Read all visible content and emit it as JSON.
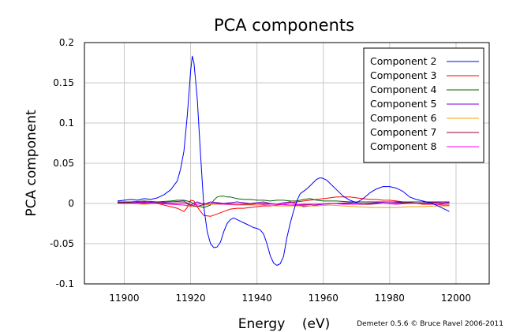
{
  "chart_data": {
    "type": "line",
    "title": "PCA components",
    "xlabel": "Energy    (eV)",
    "ylabel": "PCA component",
    "xlim": [
      11888,
      12010
    ],
    "ylim": [
      -0.1,
      0.2
    ],
    "xticks": [
      "11900",
      "11920",
      "11940",
      "11960",
      "11980",
      "12000"
    ],
    "xtick_values": [
      11900,
      11920,
      11940,
      11960,
      11980,
      12000
    ],
    "yticks": [
      "-0.1",
      "-0.05",
      "0",
      "0.05",
      "0.1",
      "0.15",
      "0.2"
    ],
    "ytick_values": [
      -0.1,
      -0.05,
      0,
      0.05,
      0.1,
      0.15,
      0.2
    ],
    "grid": true,
    "legend_position": "top-right",
    "series": [
      {
        "name": "Component 2",
        "color": "#0000ff",
        "x": [
          11898,
          11900,
          11902,
          11904,
          11906,
          11908,
          11910,
          11912,
          11914,
          11916,
          11917,
          11918,
          11919,
          11920,
          11920.5,
          11921,
          11922,
          11923,
          11924,
          11925,
          11926,
          11927,
          11928,
          11929,
          11930,
          11931,
          11932,
          11933,
          11934,
          11935,
          11936,
          11937,
          11938,
          11939,
          11940,
          11941,
          11942,
          11943,
          11944,
          11945,
          11946,
          11947,
          11948,
          11949,
          11950,
          11951,
          11952,
          11953,
          11954,
          11955,
          11956,
          11957,
          11958,
          11959,
          11960,
          11961,
          11962,
          11964,
          11966,
          11968,
          11970,
          11972,
          11974,
          11976,
          11978,
          11980,
          11982,
          11984,
          11986,
          11988,
          11990,
          11992,
          11994,
          11996,
          11998
        ],
        "y": [
          0.003,
          0.004,
          0.005,
          0.004,
          0.006,
          0.005,
          0.007,
          0.011,
          0.017,
          0.028,
          0.043,
          0.065,
          0.11,
          0.165,
          0.183,
          0.175,
          0.13,
          0.06,
          -0.005,
          -0.035,
          -0.05,
          -0.055,
          -0.054,
          -0.048,
          -0.035,
          -0.025,
          -0.02,
          -0.018,
          -0.02,
          -0.022,
          -0.024,
          -0.026,
          -0.028,
          -0.03,
          -0.031,
          -0.033,
          -0.038,
          -0.05,
          -0.065,
          -0.074,
          -0.077,
          -0.075,
          -0.066,
          -0.043,
          -0.025,
          -0.01,
          0.003,
          0.012,
          0.015,
          0.018,
          0.022,
          0.026,
          0.03,
          0.032,
          0.031,
          0.029,
          0.025,
          0.017,
          0.009,
          0.004,
          0.001,
          0.006,
          0.013,
          0.018,
          0.021,
          0.021,
          0.019,
          0.015,
          0.008,
          0.005,
          0.003,
          0.001,
          -0.002,
          -0.006,
          -0.01
        ]
      },
      {
        "name": "Component 3",
        "color": "#ff0000",
        "x": [
          11898,
          11902,
          11906,
          11910,
          11914,
          11916,
          11918,
          11919,
          11920,
          11921,
          11922,
          11923,
          11924,
          11926,
          11928,
          11930,
          11932,
          11934,
          11936,
          11938,
          11940,
          11942,
          11944,
          11946,
          11948,
          11950,
          11952,
          11954,
          11956,
          11958,
          11960,
          11962,
          11964,
          11966,
          11968,
          11970,
          11972,
          11974,
          11976,
          11978,
          11980,
          11982,
          11984,
          11986,
          11988,
          11990,
          11992,
          11994,
          11996,
          11998
        ],
        "y": [
          0.0,
          0.001,
          0.001,
          0.0,
          -0.004,
          -0.006,
          -0.01,
          -0.005,
          0.004,
          0.003,
          -0.004,
          -0.01,
          -0.015,
          -0.016,
          -0.013,
          -0.01,
          -0.007,
          -0.006,
          -0.006,
          -0.005,
          -0.004,
          -0.003,
          -0.003,
          -0.002,
          -0.001,
          0.001,
          0.002,
          0.003,
          0.004,
          0.005,
          0.006,
          0.007,
          0.008,
          0.008,
          0.008,
          0.007,
          0.006,
          0.005,
          0.005,
          0.004,
          0.004,
          0.003,
          0.002,
          0.001,
          0.0,
          -0.001,
          -0.001,
          -0.001,
          -0.002,
          -0.002
        ]
      },
      {
        "name": "Component 4",
        "color": "#006400",
        "x": [
          11898,
          11902,
          11906,
          11910,
          11914,
          11916,
          11918,
          11920,
          11922,
          11924,
          11926,
          11927,
          11928,
          11929,
          11930,
          11931,
          11932,
          11934,
          11936,
          11938,
          11940,
          11942,
          11944,
          11946,
          11948,
          11950,
          11952,
          11954,
          11956,
          11958,
          11960,
          11964,
          11968,
          11972,
          11976,
          11980,
          11984,
          11988,
          11992,
          11996,
          11998
        ],
        "y": [
          0.002,
          0.002,
          0.003,
          0.002,
          0.003,
          0.004,
          0.004,
          0.002,
          -0.003,
          -0.005,
          -0.002,
          0.004,
          0.008,
          0.009,
          0.009,
          0.008,
          0.008,
          0.006,
          0.005,
          0.005,
          0.004,
          0.004,
          0.003,
          0.004,
          0.004,
          0.003,
          0.003,
          0.005,
          0.006,
          0.004,
          0.003,
          0.003,
          0.002,
          0.002,
          0.002,
          0.002,
          0.002,
          0.002,
          0.002,
          0.002,
          0.002
        ]
      },
      {
        "name": "Component 5",
        "color": "#7b00d4",
        "x": [
          11898,
          11902,
          11906,
          11910,
          11914,
          11918,
          11920,
          11922,
          11924,
          11926,
          11928,
          11930,
          11932,
          11934,
          11936,
          11938,
          11940,
          11942,
          11944,
          11946,
          11948,
          11950,
          11952,
          11954,
          11956,
          11958,
          11960,
          11964,
          11968,
          11972,
          11976,
          11980,
          11984,
          11988,
          11992,
          11996,
          11998
        ],
        "y": [
          0.001,
          0.001,
          0.002,
          0.001,
          0.002,
          0.003,
          -0.002,
          0.002,
          -0.001,
          0.002,
          0.001,
          0.0,
          0.001,
          0.002,
          0.001,
          0.0,
          0.001,
          0.002,
          0.0,
          -0.001,
          0.001,
          0.002,
          -0.001,
          -0.004,
          -0.003,
          -0.002,
          -0.001,
          0.0,
          0.001,
          0.0,
          0.001,
          0.002,
          0.001,
          0.0,
          0.001,
          0.002,
          0.001
        ]
      },
      {
        "name": "Component 6",
        "color": "#e8a000",
        "x": [
          11898,
          11902,
          11906,
          11910,
          11914,
          11918,
          11920,
          11922,
          11924,
          11926,
          11930,
          11934,
          11938,
          11942,
          11946,
          11950,
          11954,
          11958,
          11962,
          11966,
          11970,
          11974,
          11978,
          11982,
          11986,
          11990,
          11994,
          11998
        ],
        "y": [
          0.0,
          0.0,
          -0.001,
          0.0,
          -0.001,
          -0.002,
          -0.004,
          -0.003,
          -0.002,
          -0.001,
          -0.001,
          -0.002,
          -0.002,
          -0.002,
          -0.003,
          -0.003,
          -0.003,
          -0.003,
          -0.002,
          -0.003,
          -0.004,
          -0.005,
          -0.005,
          -0.005,
          -0.004,
          -0.004,
          -0.003,
          -0.003
        ]
      },
      {
        "name": "Component 7",
        "color": "#990033",
        "x": [
          11898,
          11902,
          11906,
          11910,
          11914,
          11918,
          11920,
          11922,
          11924,
          11926,
          11930,
          11934,
          11938,
          11942,
          11946,
          11950,
          11954,
          11958,
          11962,
          11966,
          11970,
          11974,
          11978,
          11982,
          11986,
          11990,
          11994,
          11998
        ],
        "y": [
          0.001,
          0.001,
          0.0,
          0.001,
          0.0,
          0.001,
          -0.002,
          -0.004,
          -0.001,
          0.0,
          0.0,
          -0.001,
          -0.001,
          0.0,
          -0.001,
          -0.002,
          -0.002,
          -0.001,
          0.0,
          0.0,
          -0.001,
          -0.001,
          0.0,
          0.0,
          0.001,
          0.0,
          0.001,
          0.0
        ]
      },
      {
        "name": "Component 8",
        "color": "#ff00ff",
        "x": [
          11898,
          11902,
          11906,
          11910,
          11914,
          11918,
          11920,
          11922,
          11924,
          11926,
          11930,
          11934,
          11938,
          11942,
          11946,
          11950,
          11954,
          11958,
          11962,
          11966,
          11970,
          11974,
          11978,
          11982,
          11986,
          11990,
          11994,
          11998
        ],
        "y": [
          0.0,
          0.0,
          0.001,
          0.0,
          -0.001,
          -0.002,
          -0.003,
          -0.001,
          0.0,
          0.0,
          -0.001,
          -0.001,
          0.0,
          -0.001,
          -0.001,
          -0.002,
          -0.001,
          -0.001,
          0.0,
          -0.001,
          -0.001,
          0.0,
          0.0,
          -0.001,
          0.0,
          0.0,
          -0.001,
          0.0
        ]
      }
    ]
  },
  "credit": "Demeter 0.5.6 © Bruce Ravel 2006-2011"
}
